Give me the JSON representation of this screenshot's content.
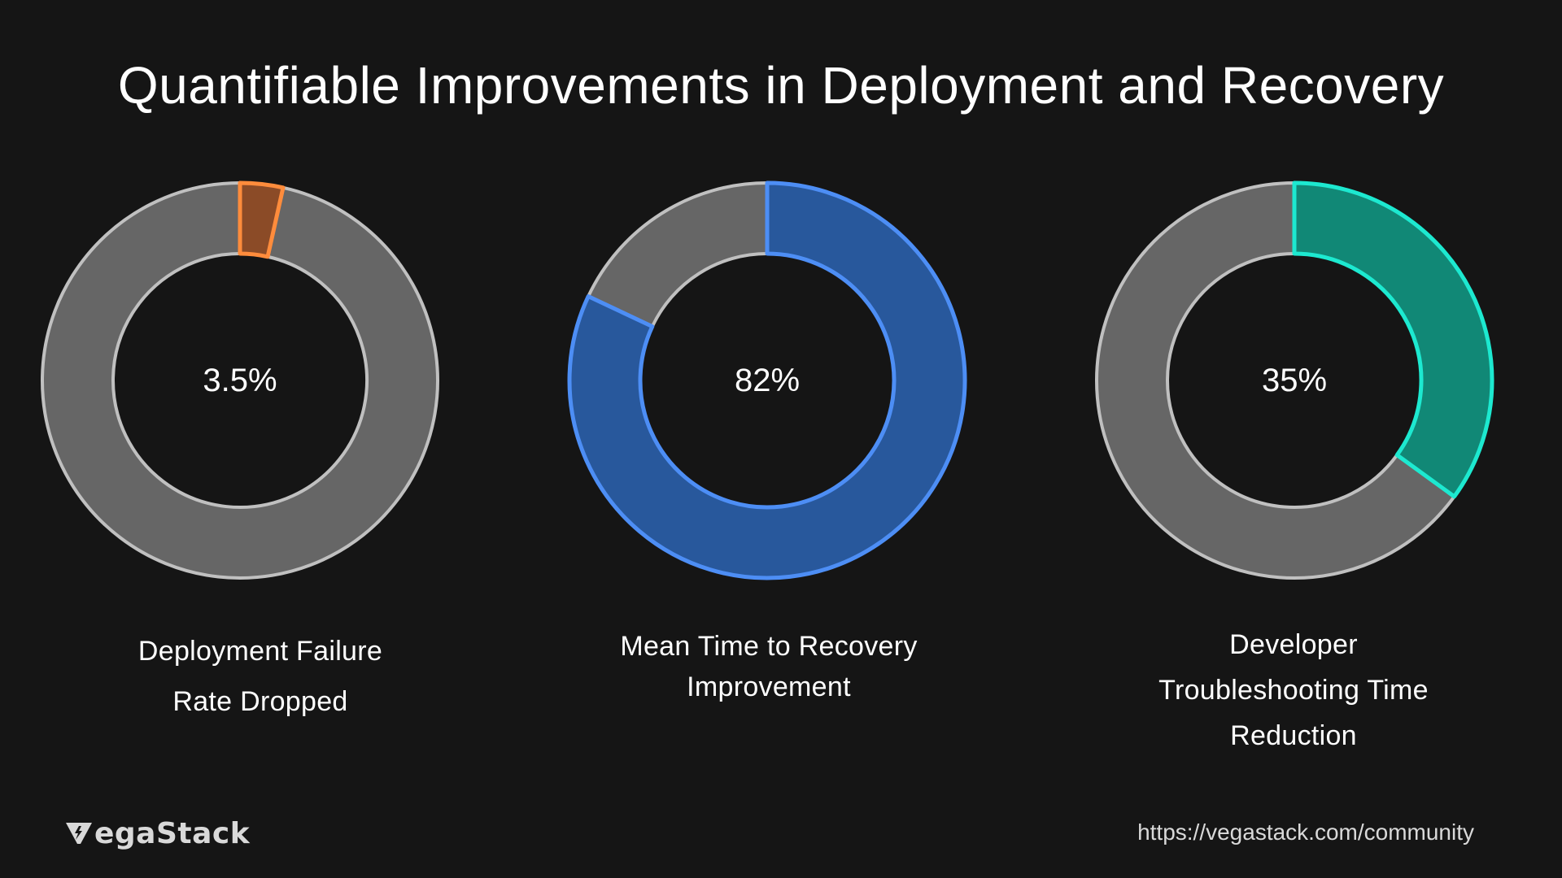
{
  "title": "Quantifiable Improvements in Deployment and Recovery",
  "chart_data": [
    {
      "type": "pie",
      "subtype": "donut",
      "value": 3.5,
      "remainder": 96.5,
      "center_label": "3.5%",
      "caption_lines": [
        "Deployment Failure",
        "Rate Dropped"
      ],
      "fill_color": "#8b4b27",
      "stroke_color": "#ff8c3c",
      "track_color": "#666666",
      "track_stroke": "#c0c0c0"
    },
    {
      "type": "pie",
      "subtype": "donut",
      "value": 82,
      "remainder": 18,
      "center_label": "82%",
      "caption_lines": [
        "Mean Time to Recovery",
        "Improvement"
      ],
      "fill_color": "#28589c",
      "stroke_color": "#4d8ef5",
      "track_color": "#666666",
      "track_stroke": "#c0c0c0"
    },
    {
      "type": "pie",
      "subtype": "donut",
      "value": 35,
      "remainder": 65,
      "center_label": "35%",
      "caption_lines": [
        "Developer",
        "Troubleshooting Time",
        "Reduction"
      ],
      "fill_color": "#118876",
      "stroke_color": "#1de9d0",
      "track_color": "#666666",
      "track_stroke": "#c0c0c0"
    }
  ],
  "footer": {
    "brand": "VegaStack",
    "brand_text": "egaStack",
    "url": "https://vegastack.com/community"
  }
}
